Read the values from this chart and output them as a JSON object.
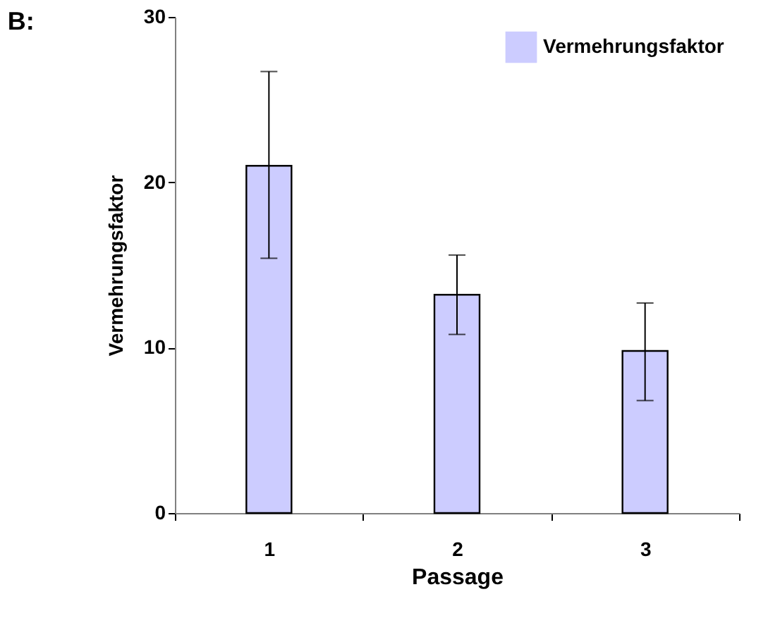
{
  "chart_data": {
    "type": "bar",
    "title": "B:",
    "xlabel": "Passage",
    "ylabel": "Vermehrungsfaktor",
    "categories": [
      "1",
      "2",
      "3"
    ],
    "series": [
      {
        "name": "Vermehrungsfaktor",
        "color": "#ccccff",
        "values": [
          21.0,
          13.2,
          9.8
        ],
        "errors": [
          [
            15.4,
            26.7
          ],
          [
            10.8,
            15.6
          ],
          [
            6.8,
            12.7
          ]
        ]
      }
    ],
    "ylim": [
      0,
      30
    ],
    "yticks": [
      0,
      10,
      20,
      30
    ],
    "grid": false,
    "legend": "top right"
  }
}
